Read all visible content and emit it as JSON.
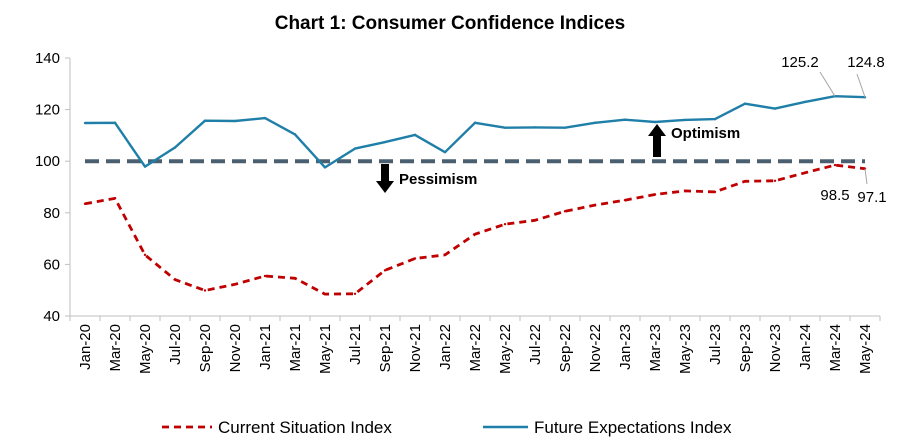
{
  "chart_data": {
    "type": "line",
    "title": "Chart 1: Consumer Confidence Indices",
    "xlabel": "",
    "ylabel": "",
    "ylim": [
      40,
      140
    ],
    "yticks": [
      40,
      60,
      80,
      100,
      120,
      140
    ],
    "grid": false,
    "legend_position": "bottom",
    "categories": [
      "Jan-20",
      "Mar-20",
      "May-20",
      "Jul-20",
      "Sep-20",
      "Nov-20",
      "Jan-21",
      "Mar-21",
      "May-21",
      "Jul-21",
      "Sep-21",
      "Nov-21",
      "Jan-22",
      "Mar-22",
      "May-22",
      "Jul-22",
      "Sep-22",
      "Nov-22",
      "Jan-23",
      "Mar-23",
      "May-23",
      "Jul-23",
      "Sep-23",
      "Nov-23",
      "Jan-24",
      "Mar-24",
      "May-24"
    ],
    "series": [
      {
        "name": "Current Situation Index",
        "color": "#c00000",
        "style": "dashed",
        "values": [
          83.5,
          85.6,
          63.7,
          54.1,
          49.9,
          52.3,
          55.5,
          54.6,
          48.5,
          48.6,
          57.7,
          62.3,
          63.7,
          71.7,
          75.6,
          77.1,
          80.6,
          83.0,
          84.9,
          87.1,
          88.5,
          88.1,
          92.2,
          92.4,
          95.5,
          98.5,
          97.1
        ]
      },
      {
        "name": "Future Expectations Index",
        "color": "#1f7fa8",
        "style": "solid",
        "values": [
          114.8,
          114.9,
          97.9,
          105.3,
          115.7,
          115.6,
          116.7,
          110.4,
          97.6,
          104.9,
          107.4,
          110.2,
          103.5,
          114.9,
          113.0,
          113.1,
          113.0,
          114.9,
          116.1,
          115.2,
          116.0,
          116.3,
          122.3,
          120.4,
          123.0,
          125.2,
          124.8
        ]
      }
    ],
    "reference_line": {
      "value": 100,
      "color": "#4a6070",
      "style": "dashed"
    },
    "annotations": {
      "optimism": "Optimism",
      "pessimism": "Pessimism",
      "fei_mar24": "125.2",
      "fei_may24": "124.8",
      "csi_mar24": "98.5",
      "csi_may24": "97.1"
    }
  }
}
